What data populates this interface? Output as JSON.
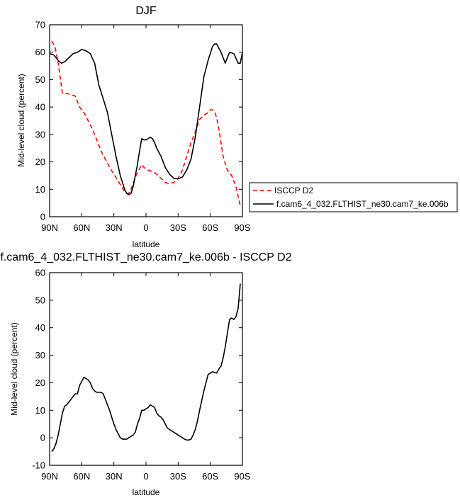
{
  "chart_data": [
    {
      "type": "line",
      "title": "DJF",
      "xlabel": "latitude",
      "ylabel": "Mid-level cloud (percent)",
      "xlim": [
        90,
        -90
      ],
      "ylim": [
        0,
        70
      ],
      "xticks": [
        90,
        60,
        30,
        0,
        -30,
        -60,
        -90
      ],
      "xticklabels": [
        "90N",
        "60N",
        "30N",
        "0",
        "30S",
        "60S",
        "90S"
      ],
      "yticks": [
        0,
        10,
        20,
        30,
        40,
        50,
        60,
        70
      ],
      "yticklabels": [
        "0",
        "10",
        "20",
        "30",
        "40",
        "50",
        "60",
        "70"
      ],
      "legend_position": "right",
      "series": [
        {
          "name": "ISCCP D2",
          "color": "#ff0000",
          "style": "dashed",
          "x": [
            88,
            85,
            82,
            78,
            74,
            70,
            66,
            62,
            58,
            54,
            50,
            46,
            42,
            38,
            34,
            30,
            26,
            22,
            20,
            18,
            16,
            14,
            12,
            10,
            8,
            6,
            4,
            2,
            0,
            -2,
            -6,
            -10,
            -14,
            -18,
            -22,
            -26,
            -30,
            -34,
            -38,
            -42,
            -46,
            -50,
            -54,
            -58,
            -60,
            -62,
            -64,
            -66,
            -68,
            -72,
            -76,
            -80,
            -84,
            -88
          ],
          "y": [
            64,
            62,
            56,
            45,
            45,
            44.5,
            44,
            40,
            38,
            35,
            32,
            28,
            24,
            21,
            18,
            15.5,
            13,
            10.5,
            9,
            8.5,
            8.5,
            10,
            12,
            14.5,
            16,
            17.5,
            19,
            18,
            17.5,
            17,
            16.5,
            15.5,
            14,
            12.5,
            12,
            12.5,
            14,
            17,
            22,
            27,
            31,
            35.5,
            37,
            38,
            39,
            39,
            38.5,
            36,
            32,
            22,
            17,
            15,
            11,
            4
          ]
        },
        {
          "name": "f.cam6_4_032.FLTHIST_ne30.cam7_ke.006b",
          "color": "#000000",
          "style": "solid",
          "x": [
            90,
            86,
            82,
            79,
            76,
            72,
            68,
            64,
            60,
            56,
            52,
            48,
            44,
            40,
            36,
            32,
            28,
            24,
            20,
            18,
            16,
            14,
            12,
            10,
            8,
            6,
            4,
            2,
            0,
            -2,
            -4,
            -6,
            -8,
            -10,
            -14,
            -18,
            -22,
            -26,
            -30,
            -34,
            -38,
            -42,
            -46,
            -50,
            -54,
            -58,
            -62,
            -64,
            -66,
            -70,
            -74,
            -78,
            -82,
            -86,
            -88,
            -90
          ],
          "y": [
            59.5,
            59,
            57,
            56,
            56.5,
            58,
            59.5,
            60,
            61,
            60.5,
            59.5,
            56,
            48,
            43,
            38,
            30,
            22,
            15,
            10,
            8.5,
            8,
            8.5,
            11,
            15,
            19,
            24,
            28.5,
            28,
            28,
            28.5,
            29,
            28.5,
            27,
            25,
            22,
            18,
            15.5,
            14,
            13.8,
            14.5,
            17,
            21,
            29,
            40,
            51,
            57,
            62,
            63,
            63,
            60,
            56,
            60,
            59.5,
            56,
            56,
            60
          ]
        }
      ]
    },
    {
      "type": "line",
      "title": "f.cam6_4_032.FLTHIST_ne30.cam7_ke.006b - ISCCP D2",
      "xlabel": "latitude",
      "ylabel": "Mid-level cloud (percent)",
      "xlim": [
        90,
        -90
      ],
      "ylim": [
        -10,
        60
      ],
      "xticks": [
        90,
        60,
        30,
        0,
        -30,
        -60,
        -90
      ],
      "xticklabels": [
        "90N",
        "60N",
        "30N",
        "0",
        "30S",
        "60S",
        "90S"
      ],
      "yticks": [
        -10,
        0,
        10,
        20,
        30,
        40,
        50,
        60
      ],
      "yticklabels": [
        "-10",
        "0",
        "10",
        "20",
        "30",
        "40",
        "50",
        "60"
      ],
      "series": [
        {
          "color": "#000000",
          "style": "solid",
          "x": [
            88,
            86,
            84,
            82,
            80,
            78,
            76,
            74,
            72,
            70,
            68,
            66,
            64,
            62,
            60,
            58,
            56,
            54,
            52,
            50,
            48,
            46,
            44,
            42,
            40,
            38,
            36,
            34,
            32,
            30,
            28,
            26,
            24,
            22,
            20,
            18,
            16,
            14,
            12,
            10,
            8,
            6,
            4,
            2,
            0,
            -2,
            -4,
            -6,
            -8,
            -10,
            -12,
            -14,
            -16,
            -18,
            -20,
            -24,
            -28,
            -32,
            -36,
            -38,
            -40,
            -42,
            -44,
            -46,
            -48,
            -50,
            -54,
            -58,
            -62,
            -66,
            -68,
            -70,
            -72,
            -74,
            -76,
            -78,
            -80,
            -82,
            -84,
            -86,
            -88
          ],
          "y": [
            -5,
            -4,
            -2,
            1,
            5,
            9,
            11.5,
            12,
            13,
            14,
            15,
            16,
            16,
            19,
            20.5,
            22,
            21.5,
            21,
            20,
            18,
            17,
            16.5,
            16.5,
            16.5,
            16,
            14,
            12,
            10,
            7.5,
            5,
            3,
            1.5,
            0,
            -0.5,
            -0.5,
            -0.5,
            0,
            0.5,
            1,
            2,
            5,
            7,
            10,
            10,
            10.5,
            11,
            12,
            11.5,
            11,
            9,
            8,
            7.5,
            6.5,
            5,
            3.5,
            2.5,
            1.5,
            0.5,
            -0.5,
            -0.8,
            -0.8,
            -0.5,
            1,
            3,
            6,
            10,
            17,
            23,
            24,
            23.5,
            25,
            26,
            29,
            33,
            38,
            43,
            43.5,
            43,
            44,
            47,
            56
          ]
        }
      ]
    }
  ]
}
